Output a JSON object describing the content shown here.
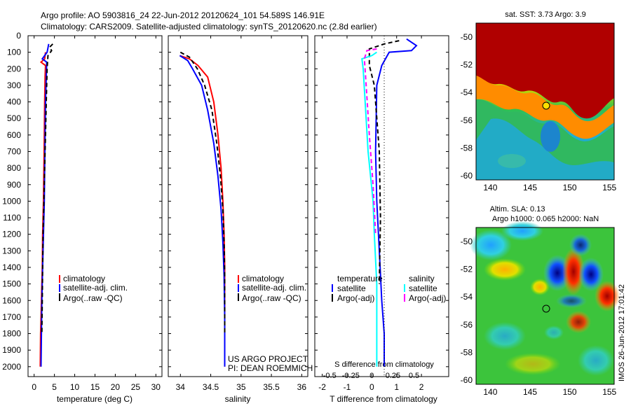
{
  "header": {
    "line1": "Argo profile: AO 5903816_24 22-Jun-2012 20120624_101 54.589S 146.91E",
    "line2": "Climatology: CARS2009. Satellite-adjusted climatology: synTS_20120620.nc (2.8d earlier)"
  },
  "colors": {
    "red": "#ff0000",
    "blue": "#0000ff",
    "black": "#000000",
    "cyan": "#00ffff",
    "magenta": "#ff00ff"
  },
  "depth_ticks": [
    "0",
    "100",
    "200",
    "300",
    "400",
    "500",
    "600",
    "700",
    "800",
    "900",
    "1000",
    "1100",
    "1200",
    "1300",
    "1400",
    "1500",
    "1600",
    "1700",
    "1800",
    "1900",
    "2000"
  ],
  "chart_data": [
    {
      "type": "line",
      "xlabel": "temperature (deg C)",
      "xlim": [
        -1.5,
        31.5
      ],
      "ylim": [
        2060,
        0
      ],
      "xticks": [
        "0",
        "5",
        "10",
        "15",
        "20",
        "25",
        "30"
      ],
      "legend": [
        "climatology",
        "satellite-adj. clim.",
        "Argo(..raw -QC)"
      ],
      "series": [
        {
          "name": "climatology",
          "color": "red",
          "dash": "",
          "x": [
            2.8,
            2.6,
            1.7,
            2.8,
            2.7,
            2.6,
            2.5,
            2.4,
            2.3,
            2.1,
            2.0,
            1.8,
            1.6,
            1.5
          ],
          "y": [
            100,
            140,
            160,
            180,
            250,
            400,
            600,
            800,
            1000,
            1200,
            1400,
            1600,
            1800,
            2000
          ]
        },
        {
          "name": "satellite-adj. clim.",
          "color": "blue",
          "dash": "",
          "x": [
            3.6,
            3.2,
            2.0,
            3.1,
            3.0,
            2.8,
            2.7,
            2.6,
            2.5,
            2.3,
            2.1,
            1.9,
            1.8,
            1.7
          ],
          "y": [
            50,
            100,
            140,
            160,
            250,
            400,
            600,
            800,
            1000,
            1200,
            1400,
            1600,
            1800,
            2000
          ]
        },
        {
          "name": "Argo(..raw -QC)",
          "color": "black",
          "dash": "6,4",
          "x": [
            4.6,
            3.8,
            4.3,
            3.4,
            3.2,
            3.0,
            2.8,
            2.6,
            2.4,
            2.2,
            2.1,
            2.0,
            1.9
          ],
          "y": [
            50,
            70,
            90,
            120,
            200,
            400,
            600,
            800,
            1000,
            1200,
            1400,
            1600,
            1800
          ]
        }
      ]
    },
    {
      "type": "line",
      "xlabel": "salinity",
      "xlim": [
        33.8,
        36.1
      ],
      "ylim": [
        2060,
        0
      ],
      "xticks": [
        "34",
        "34.5",
        "35",
        "35.5",
        "36"
      ],
      "legend": [
        "climatology",
        "satellite-adj. clim.",
        "Argo(..raw -QC)"
      ],
      "annotation": [
        "US ARGO PROJECT",
        "PI: DEAN ROEMMICH"
      ],
      "series": [
        {
          "name": "climatology",
          "color": "red",
          "dash": "",
          "x": [
            33.99,
            34.15,
            34.29,
            34.45,
            34.55,
            34.62,
            34.67,
            34.7,
            34.72,
            34.73,
            34.73,
            34.73
          ],
          "y": [
            120,
            140,
            180,
            250,
            400,
            600,
            800,
            1000,
            1200,
            1400,
            1700,
            2000
          ]
        },
        {
          "name": "satellite-adj. clim.",
          "color": "blue",
          "dash": "",
          "x": [
            33.99,
            34.12,
            34.2,
            34.35,
            34.45,
            34.55,
            34.62,
            34.67,
            34.7,
            34.72,
            34.73,
            34.73
          ],
          "y": [
            120,
            150,
            200,
            300,
            450,
            650,
            850,
            1050,
            1250,
            1450,
            1700,
            2000
          ]
        },
        {
          "name": "Argo(..raw -QC)",
          "color": "black",
          "dash": "6,4",
          "x": [
            34.0,
            34.15,
            34.28,
            34.4,
            34.52,
            34.6,
            34.66,
            34.7,
            34.72,
            34.73,
            34.73
          ],
          "y": [
            100,
            130,
            200,
            300,
            450,
            650,
            850,
            1050,
            1250,
            1450,
            1800
          ]
        }
      ]
    },
    {
      "type": "line",
      "xlabel": "T difference from climatology",
      "xlabel2": "S difference from climatology",
      "xlim": [
        -2.3,
        3.1
      ],
      "ylim": [
        2060,
        0
      ],
      "xticks": [
        "-2",
        "-1",
        "0",
        "1",
        "2"
      ],
      "xticks2": [
        "-0.5",
        "-0.25",
        "0",
        "0.25",
        "0.5"
      ],
      "legend_t_title": "temperature",
      "legend_s_title": "salinity",
      "legend_t": [
        "satellite",
        "Argo(-adj)"
      ],
      "legend_s": [
        "satellite",
        "Argo(-adj)"
      ],
      "series": [
        {
          "name": "satellite",
          "color": "blue",
          "dash": "",
          "x": [
            1.4,
            1.8,
            1.6,
            0.7,
            0.4,
            0.2,
            0.15,
            0.2,
            0.3,
            0.4,
            0.5,
            0.5
          ],
          "y": [
            20,
            60,
            90,
            100,
            180,
            300,
            700,
            1000,
            1300,
            1600,
            1800,
            2000
          ]
        },
        {
          "name": "Argo(-adj)",
          "color": "black",
          "dash": "6,4",
          "x": [
            1.1,
            0.5,
            -0.1,
            -0.1,
            0.1,
            0.3,
            0.35,
            0.3
          ],
          "y": [
            30,
            50,
            80,
            180,
            300,
            700,
            1100,
            1500
          ]
        },
        {
          "name": "satellite",
          "color": "cyan",
          "dash": "",
          "x": [
            0.2,
            0.0,
            -0.4,
            -0.35,
            -0.15,
            0.05,
            0.1,
            0.2,
            0.2
          ],
          "y": [
            100,
            120,
            140,
            200,
            700,
            1000,
            1200,
            1500,
            2000
          ]
        },
        {
          "name": "Argo(-adj)",
          "color": "magenta",
          "dash": "6,4",
          "x": [
            0.2,
            -0.2,
            -0.3,
            -0.25,
            -0.1,
            0.05,
            0.15
          ],
          "y": [
            80,
            90,
            140,
            250,
            600,
            900,
            1200
          ]
        }
      ]
    }
  ],
  "maps": [
    {
      "title": "sat. SST: 3.73 Argo: 3.9",
      "xticks": [
        "140",
        "145",
        "150",
        "155"
      ],
      "yticks": [
        "-50",
        "-52",
        "-54",
        "-56",
        "-58",
        "-60"
      ],
      "argo_lon": 146.91,
      "argo_lat": -54.589
    },
    {
      "title1": "Altim. SLA: 0.13",
      "title2": "Argo h1000: 0.065 h2000: NaN",
      "xticks": [
        "140",
        "145",
        "150",
        "155"
      ],
      "yticks": [
        "-50",
        "-52",
        "-54",
        "-56",
        "-58",
        "-60"
      ],
      "argo_lon": 146.91,
      "argo_lat": -54.589
    }
  ],
  "footer_vertical": "IMOS 26-Jun-2012 17:01:42"
}
